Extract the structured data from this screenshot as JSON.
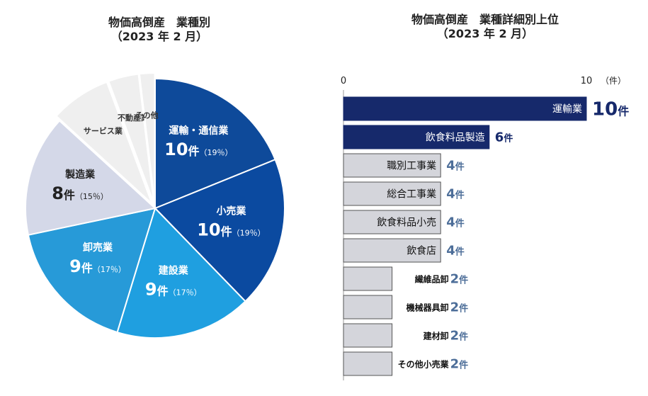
{
  "colors": {
    "transport": "#0e4a9a",
    "retail": "#0b4aa0",
    "construction": "#1f9fe0",
    "wholesale": "#279ad8",
    "manufacturing": "#d4d8e8",
    "minor": "#efefef",
    "bar_top": "#16296b",
    "bar_other": "#d4d5db",
    "bar_outline": "#555555",
    "value_top": "#16296b",
    "value_other": "#4d6e99"
  },
  "left_title": {
    "line1": "物価高倒産　業種別",
    "line2": "（2023 年 2 月）"
  },
  "right_title": {
    "line1": "物価高倒産　業種詳細別上位",
    "line2": "（2023 年 2 月）"
  },
  "chart_data": [
    {
      "type": "pie",
      "slices": [
        {
          "label": "運輸・通信業",
          "value": 10,
          "unit": "件",
          "percent": "（19％）"
        },
        {
          "label": "小売業",
          "value": 10,
          "unit": "件",
          "percent": "（19％）"
        },
        {
          "label": "建設業",
          "value": 9,
          "unit": "件",
          "percent": "（17％）"
        },
        {
          "label": "卸売業",
          "value": 9,
          "unit": "件",
          "percent": "（17％）"
        },
        {
          "label": "製造業",
          "value": 8,
          "unit": "件",
          "percent": "（15％）"
        },
        {
          "label": "サービス業",
          "value": 4
        },
        {
          "label": "不動産業",
          "value": 2
        },
        {
          "label": "その他",
          "value": 1
        }
      ]
    },
    {
      "type": "bar",
      "orientation": "horizontal",
      "axis": {
        "min": 0,
        "max": 10,
        "tick_labels": [
          "0",
          "10"
        ],
        "unit_label": "（件）"
      },
      "unit": "件",
      "categories": [
        "運輸業",
        "飲食料品製造",
        "職別工事業",
        "総合工事業",
        "飲食料品小売",
        "飲食店",
        "繊維品卸",
        "機械器具卸",
        "建材卸",
        "その他小売業"
      ],
      "values": [
        10,
        6,
        4,
        4,
        4,
        4,
        2,
        2,
        2,
        2
      ]
    }
  ]
}
